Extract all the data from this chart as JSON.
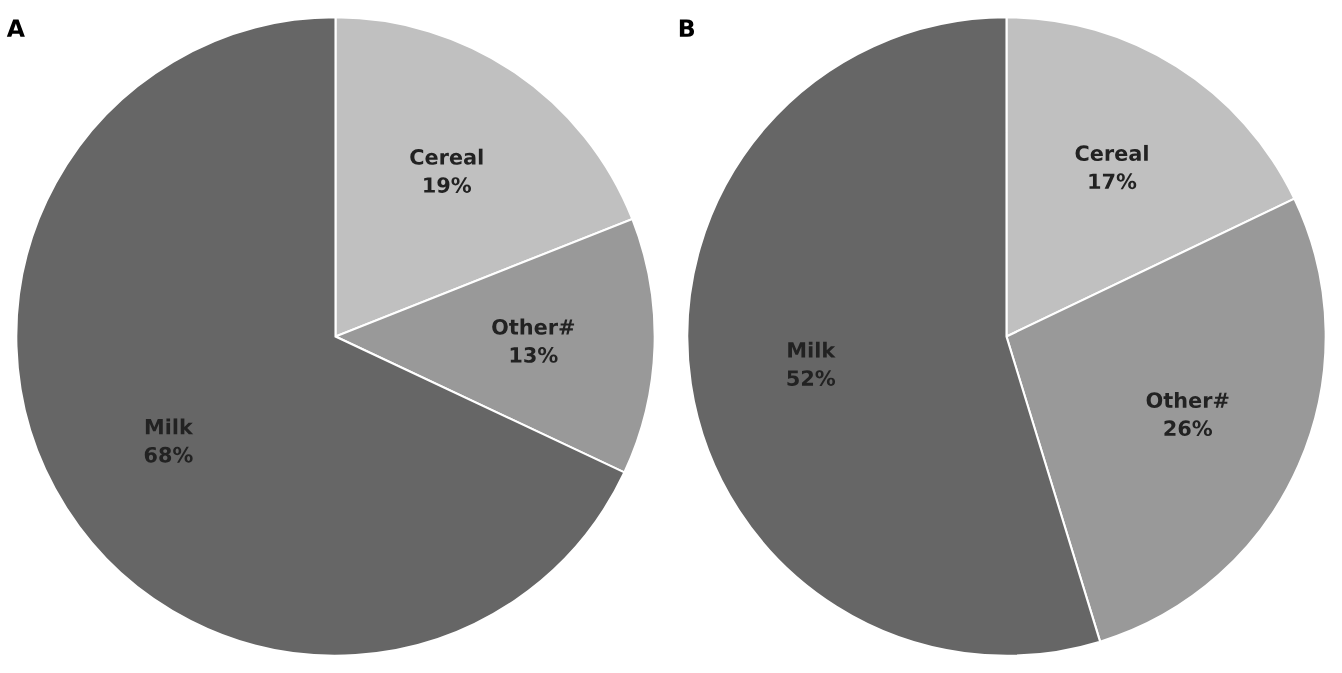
{
  "chart_data": [
    {
      "type": "pie",
      "title": "A",
      "categories": [
        "Cereal",
        "Other#",
        "Milk"
      ],
      "values": [
        19,
        13,
        68
      ],
      "colors": [
        "#c0c0c0",
        "#999999",
        "#666666"
      ],
      "value_labels": [
        "19%",
        "13%",
        "68%"
      ]
    },
    {
      "type": "pie",
      "title": "B",
      "categories": [
        "Cereal",
        "Other#",
        "Milk"
      ],
      "values": [
        17,
        26,
        52
      ],
      "colors": [
        "#c0c0c0",
        "#999999",
        "#666666"
      ],
      "value_labels": [
        "17%",
        "26%",
        "52%"
      ]
    }
  ]
}
